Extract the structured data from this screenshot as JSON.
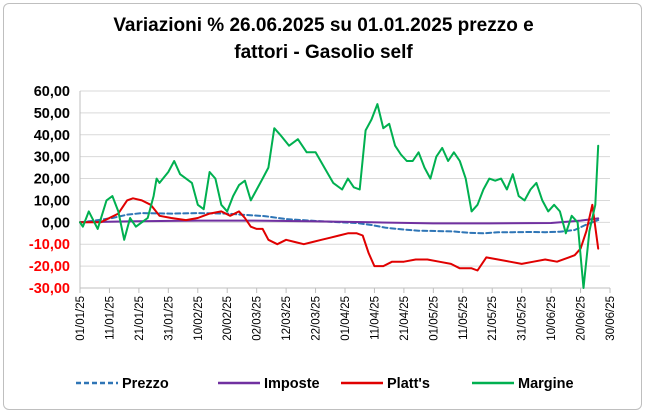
{
  "chart_data": {
    "type": "line",
    "title_line1": "Variazioni % 26.06.2025 su 01.01.2025 prezzo e",
    "title_line2": "fattori - Gasolio self",
    "ylim": [
      -30,
      60
    ],
    "yticks": [
      "60,00",
      "50,00",
      "40,00",
      "30,00",
      "20,00",
      "10,00",
      "0,00",
      "-10,00",
      "-20,00",
      "-30,00"
    ],
    "ytick_values": [
      60,
      50,
      40,
      30,
      20,
      10,
      0,
      -10,
      -20,
      -30
    ],
    "negative_tick_color": "#ff0000",
    "xlim": [
      "01/01/25",
      "30/06/25"
    ],
    "xticks": [
      "01/01/25",
      "11/01/25",
      "21/01/25",
      "31/01/25",
      "10/02/25",
      "20/02/25",
      "02/03/25",
      "12/03/25",
      "22/03/25",
      "01/04/25",
      "11/04/25",
      "21/04/25",
      "01/05/25",
      "11/05/25",
      "21/05/25",
      "31/05/25",
      "10/06/25",
      "20/06/25",
      "30/06/25"
    ],
    "legend_position": "bottom",
    "series": [
      {
        "name": "Prezzo",
        "color": "#2e75b6",
        "style": "dashed",
        "x": [
          "01/01/25",
          "06/01/25",
          "12/01/25",
          "17/01/25",
          "22/01/25",
          "01/02/25",
          "10/02/25",
          "20/02/25",
          "25/02/25",
          "05/03/25",
          "12/03/25",
          "20/03/25",
          "28/03/25",
          "05/04/25",
          "10/04/25",
          "15/04/25",
          "21/04/25",
          "26/04/25",
          "03/05/25",
          "08/05/25",
          "13/05/25",
          "18/05/25",
          "23/05/25",
          "28/05/25",
          "03/06/25",
          "08/06/25",
          "13/06/25",
          "18/06/25",
          "22/06/25",
          "26/06/25"
        ],
        "y": [
          0,
          0.8,
          2,
          3.5,
          4.2,
          4,
          4.2,
          4,
          3.5,
          2.8,
          1.5,
          0.8,
          0.2,
          -0.3,
          -1.2,
          -2.5,
          -3.3,
          -3.8,
          -4,
          -4.2,
          -4.8,
          -5,
          -4.5,
          -4.5,
          -4.4,
          -4.5,
          -4.3,
          -3.5,
          -1,
          1
        ]
      },
      {
        "name": "Imposte",
        "color": "#7030a0",
        "style": "solid",
        "x": [
          "01/01/25",
          "20/01/25",
          "10/02/25",
          "01/03/25",
          "20/03/25",
          "10/04/25",
          "01/05/25",
          "20/05/25",
          "10/06/25",
          "20/06/25",
          "26/06/25"
        ],
        "y": [
          0,
          0.5,
          0.8,
          0.8,
          0.5,
          0,
          -0.5,
          -0.5,
          -0.3,
          0.8,
          1.8
        ]
      },
      {
        "name": "Platt's",
        "color": "#e00000",
        "style": "solid",
        "x": [
          "01/01/25",
          "08/01/25",
          "14/01/25",
          "17/01/25",
          "19/01/25",
          "22/01/25",
          "25/01/25",
          "28/01/25",
          "01/02/25",
          "06/02/25",
          "10/02/25",
          "14/02/25",
          "18/02/25",
          "21/02/25",
          "24/02/25",
          "26/02/25",
          "28/02/25",
          "02/03/25",
          "04/03/25",
          "06/03/25",
          "09/03/25",
          "12/03/25",
          "15/03/25",
          "18/03/25",
          "21/03/25",
          "24/03/25",
          "27/03/25",
          "30/03/25",
          "02/04/25",
          "05/04/25",
          "07/04/25",
          "09/04/25",
          "11/04/25",
          "14/04/25",
          "17/04/25",
          "21/04/25",
          "25/04/25",
          "29/04/25",
          "03/05/25",
          "07/05/25",
          "10/05/25",
          "14/05/25",
          "16/05/25",
          "19/05/25",
          "23/05/25",
          "27/05/25",
          "31/05/25",
          "04/06/25",
          "08/06/25",
          "12/06/25",
          "16/06/25",
          "18/06/25",
          "20/06/25",
          "22/06/25",
          "24/06/25",
          "26/06/25"
        ],
        "y": [
          0,
          0,
          4,
          10,
          11,
          10,
          8,
          3,
          2,
          1,
          2,
          4,
          5,
          3,
          5,
          2,
          -2,
          -3,
          -3,
          -8,
          -10,
          -8,
          -9,
          -10,
          -9,
          -8,
          -7,
          -6,
          -5,
          -5,
          -6,
          -14,
          -20,
          -20,
          -18,
          -18,
          -17,
          -17,
          -18,
          -19,
          -21,
          -21,
          -22,
          -16,
          -17,
          -18,
          -19,
          -18,
          -17,
          -18,
          -16,
          -15,
          -12,
          -4,
          8,
          -12
        ]
      },
      {
        "name": "Margine",
        "color": "#00b050",
        "style": "solid",
        "x": [
          "01/01/25",
          "02/01/25",
          "04/01/25",
          "07/01/25",
          "10/01/25",
          "12/01/25",
          "14/01/25",
          "16/01/25",
          "18/01/25",
          "20/01/25",
          "22/01/25",
          "24/01/25",
          "26/01/25",
          "27/01/25",
          "28/01/25",
          "31/01/25",
          "02/02/25",
          "04/02/25",
          "06/02/25",
          "08/02/25",
          "10/02/25",
          "12/02/25",
          "14/02/25",
          "16/02/25",
          "18/02/25",
          "20/02/25",
          "22/02/25",
          "24/02/25",
          "26/02/25",
          "28/02/25",
          "02/03/25",
          "04/03/25",
          "06/03/25",
          "08/03/25",
          "10/03/25",
          "13/03/25",
          "16/03/25",
          "19/03/25",
          "22/03/25",
          "25/03/25",
          "28/03/25",
          "31/03/25",
          "02/04/25",
          "04/04/25",
          "06/04/25",
          "08/04/25",
          "10/04/25",
          "12/04/25",
          "14/04/25",
          "16/04/25",
          "18/04/25",
          "20/04/25",
          "22/04/25",
          "24/04/25",
          "26/04/25",
          "28/04/25",
          "30/04/25",
          "02/05/25",
          "04/05/25",
          "06/05/25",
          "08/05/25",
          "10/05/25",
          "12/05/25",
          "14/05/25",
          "16/05/25",
          "18/05/25",
          "20/05/25",
          "22/05/25",
          "24/05/25",
          "26/05/25",
          "28/05/25",
          "30/05/25",
          "01/06/25",
          "03/06/25",
          "05/06/25",
          "07/06/25",
          "09/06/25",
          "11/06/25",
          "13/06/25",
          "15/06/25",
          "17/06/25",
          "19/06/25",
          "21/06/25",
          "23/06/25",
          "25/06/25",
          "26/06/25"
        ],
        "y": [
          0,
          -2,
          5,
          -3,
          10,
          12,
          5,
          -8,
          2,
          -2,
          0,
          2,
          12,
          20,
          18,
          23,
          28,
          22,
          20,
          18,
          8,
          6,
          23,
          20,
          8,
          5,
          12,
          17,
          19,
          10,
          15,
          20,
          25,
          43,
          40,
          35,
          38,
          32,
          32,
          25,
          18,
          15,
          20,
          16,
          15,
          42,
          47,
          54,
          43,
          45,
          35,
          31,
          28,
          28,
          32,
          25,
          20,
          30,
          34,
          28,
          32,
          28,
          20,
          5,
          8,
          15,
          20,
          19,
          20,
          15,
          22,
          12,
          10,
          15,
          18,
          10,
          5,
          8,
          5,
          -5,
          3,
          0,
          -30,
          -4,
          8,
          35
        ]
      }
    ]
  }
}
